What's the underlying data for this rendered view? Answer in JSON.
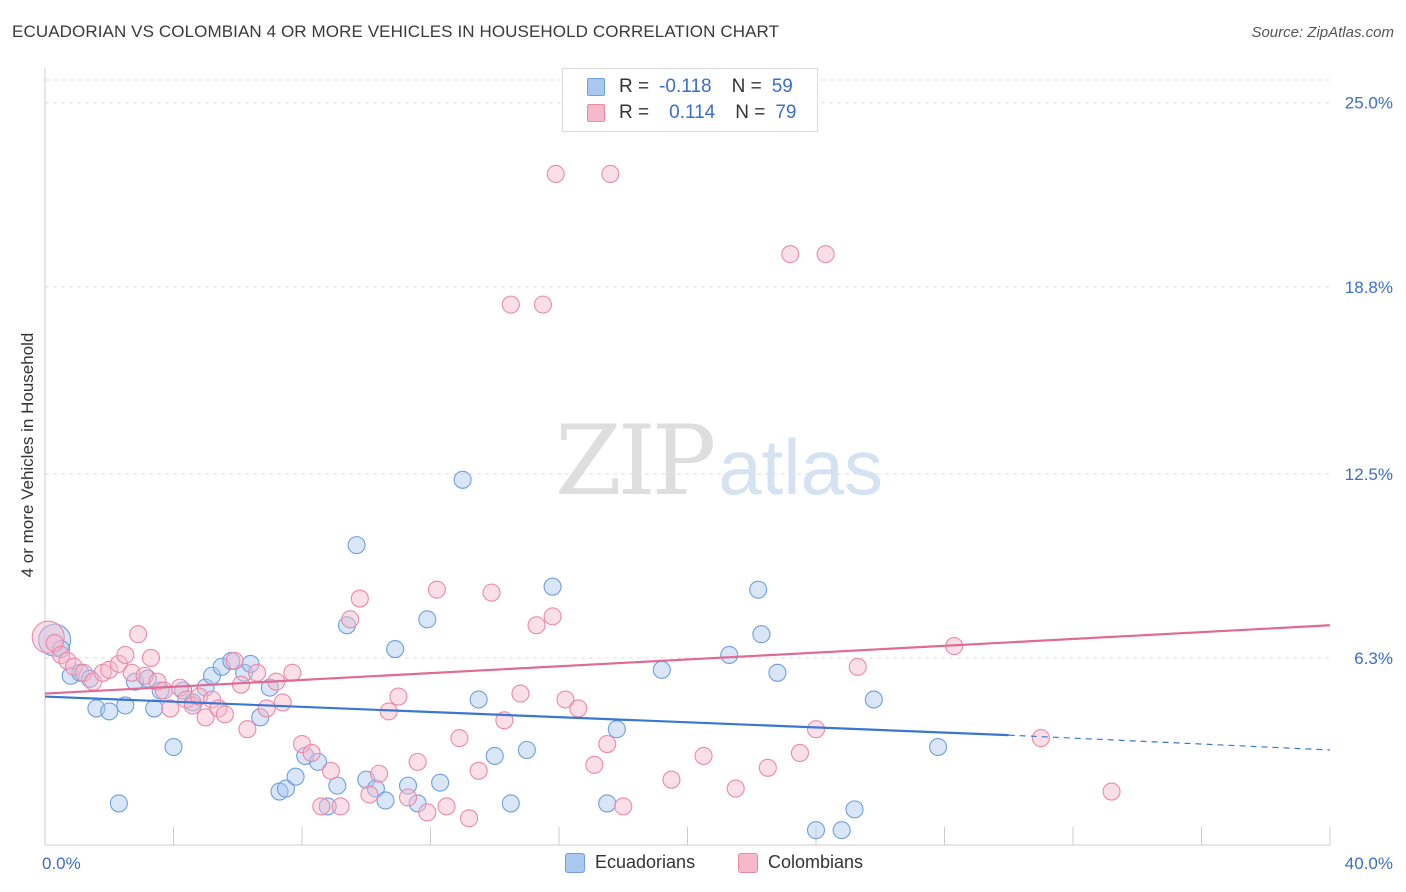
{
  "title": "ECUADORIAN VS COLOMBIAN 4 OR MORE VEHICLES IN HOUSEHOLD CORRELATION CHART",
  "source": "Source: ZipAtlas.com",
  "watermark": {
    "part1": "ZIP",
    "part2": "atlas"
  },
  "legend_top": [
    {
      "r_label": "R =",
      "r_value": "-0.118",
      "n_label": "N =",
      "n_value": "59",
      "color": "#a9c8f0"
    },
    {
      "r_label": "R =",
      "r_value": "0.114",
      "n_label": "N =",
      "n_value": "79",
      "color": "#f6b8cb"
    }
  ],
  "legend_bottom": [
    {
      "label": "Ecuadorians",
      "color": "#a9c8f0"
    },
    {
      "label": "Colombians",
      "color": "#f6b8cb"
    }
  ],
  "chart_data": {
    "type": "scatter",
    "ylabel": "4 or more Vehicles in Household",
    "xlim": [
      0,
      40
    ],
    "ylim": [
      0,
      25.9
    ],
    "x_tick_labels": [
      {
        "value": 0,
        "label": "0.0%"
      },
      {
        "value": 40,
        "label": "40.0%"
      }
    ],
    "y_tick_labels": [
      {
        "value": 6.3,
        "label": "6.3%"
      },
      {
        "value": 12.5,
        "label": "12.5%"
      },
      {
        "value": 18.8,
        "label": "18.8%"
      },
      {
        "value": 25.0,
        "label": "25.0%"
      }
    ],
    "x_minor_ticks": [
      4,
      8,
      12,
      16,
      20,
      24,
      28,
      32,
      36,
      40
    ],
    "grid": true,
    "series": [
      {
        "name": "Ecuadorians",
        "color": "#a9c8f0",
        "stroke": "#6f9fdc",
        "trend": {
          "x": [
            0,
            30
          ],
          "y": [
            5.0,
            3.7
          ],
          "color": "#3a78d0",
          "dashed_to": [
            40,
            3.2
          ]
        },
        "points": [
          [
            0.3,
            6.9
          ],
          [
            0.5,
            6.6
          ],
          [
            0.8,
            5.7
          ],
          [
            1.1,
            5.8
          ],
          [
            1.4,
            5.6
          ],
          [
            1.6,
            4.6
          ],
          [
            2.0,
            4.5
          ],
          [
            2.3,
            1.4
          ],
          [
            2.5,
            4.7
          ],
          [
            2.8,
            5.5
          ],
          [
            3.2,
            5.6
          ],
          [
            3.4,
            4.6
          ],
          [
            3.6,
            5.2
          ],
          [
            4.0,
            3.3
          ],
          [
            4.3,
            5.2
          ],
          [
            4.6,
            4.8
          ],
          [
            5.0,
            5.3
          ],
          [
            5.2,
            5.7
          ],
          [
            5.5,
            6.0
          ],
          [
            5.8,
            6.2
          ],
          [
            6.2,
            5.8
          ],
          [
            6.4,
            6.1
          ],
          [
            6.7,
            4.3
          ],
          [
            7.0,
            5.3
          ],
          [
            7.3,
            1.8
          ],
          [
            7.5,
            1.9
          ],
          [
            7.8,
            2.3
          ],
          [
            8.1,
            3.0
          ],
          [
            8.5,
            2.8
          ],
          [
            8.8,
            1.3
          ],
          [
            9.1,
            2.0
          ],
          [
            9.4,
            7.4
          ],
          [
            9.7,
            10.1
          ],
          [
            10.0,
            2.2
          ],
          [
            10.3,
            1.9
          ],
          [
            10.6,
            1.5
          ],
          [
            10.9,
            6.6
          ],
          [
            11.3,
            2.0
          ],
          [
            11.6,
            1.4
          ],
          [
            11.9,
            7.6
          ],
          [
            12.3,
            2.1
          ],
          [
            13.0,
            12.3
          ],
          [
            13.5,
            4.9
          ],
          [
            14.0,
            3.0
          ],
          [
            14.5,
            1.4
          ],
          [
            15.0,
            3.2
          ],
          [
            15.8,
            8.7
          ],
          [
            17.5,
            1.4
          ],
          [
            17.8,
            3.9
          ],
          [
            19.2,
            5.9
          ],
          [
            21.3,
            6.4
          ],
          [
            22.3,
            7.1
          ],
          [
            22.8,
            5.8
          ],
          [
            22.2,
            8.6
          ],
          [
            24.0,
            0.5
          ],
          [
            24.8,
            0.5
          ],
          [
            25.2,
            1.2
          ],
          [
            25.8,
            4.9
          ],
          [
            27.8,
            3.3
          ]
        ]
      },
      {
        "name": "Colombians",
        "color": "#f6b8cb",
        "stroke": "#ea8aa8",
        "trend": {
          "x": [
            0,
            40
          ],
          "y": [
            5.1,
            7.4
          ],
          "color": "#e06a94"
        },
        "points": [
          [
            0.1,
            7.0
          ],
          [
            0.3,
            6.8
          ],
          [
            0.5,
            6.4
          ],
          [
            0.7,
            6.2
          ],
          [
            0.9,
            6.0
          ],
          [
            1.2,
            5.8
          ],
          [
            1.5,
            5.5
          ],
          [
            1.8,
            5.8
          ],
          [
            2.0,
            5.9
          ],
          [
            2.3,
            6.1
          ],
          [
            2.5,
            6.4
          ],
          [
            2.7,
            5.8
          ],
          [
            2.9,
            7.1
          ],
          [
            3.1,
            5.7
          ],
          [
            3.3,
            6.3
          ],
          [
            3.5,
            5.5
          ],
          [
            3.7,
            5.2
          ],
          [
            3.9,
            4.6
          ],
          [
            4.2,
            5.3
          ],
          [
            4.4,
            4.9
          ],
          [
            4.6,
            4.7
          ],
          [
            4.8,
            5.0
          ],
          [
            5.0,
            4.3
          ],
          [
            5.2,
            4.9
          ],
          [
            5.4,
            4.6
          ],
          [
            5.6,
            4.4
          ],
          [
            5.9,
            6.2
          ],
          [
            6.1,
            5.4
          ],
          [
            6.3,
            3.9
          ],
          [
            6.6,
            5.8
          ],
          [
            6.9,
            4.6
          ],
          [
            7.2,
            5.5
          ],
          [
            7.4,
            4.8
          ],
          [
            7.7,
            5.8
          ],
          [
            8.0,
            3.4
          ],
          [
            8.3,
            3.1
          ],
          [
            8.6,
            1.3
          ],
          [
            8.9,
            2.5
          ],
          [
            9.2,
            1.3
          ],
          [
            9.5,
            7.6
          ],
          [
            9.8,
            8.3
          ],
          [
            10.1,
            1.7
          ],
          [
            10.4,
            2.4
          ],
          [
            10.7,
            4.5
          ],
          [
            11.0,
            5.0
          ],
          [
            11.3,
            1.6
          ],
          [
            11.6,
            2.8
          ],
          [
            11.9,
            1.1
          ],
          [
            12.2,
            8.6
          ],
          [
            12.5,
            1.3
          ],
          [
            12.9,
            3.6
          ],
          [
            13.2,
            0.9
          ],
          [
            13.5,
            2.5
          ],
          [
            13.9,
            8.5
          ],
          [
            14.3,
            4.2
          ],
          [
            14.8,
            5.1
          ],
          [
            15.3,
            7.4
          ],
          [
            15.8,
            7.7
          ],
          [
            16.2,
            4.9
          ],
          [
            16.6,
            4.6
          ],
          [
            17.1,
            2.7
          ],
          [
            17.5,
            3.4
          ],
          [
            14.5,
            18.2
          ],
          [
            15.5,
            18.2
          ],
          [
            15.9,
            22.6
          ],
          [
            17.6,
            22.6
          ],
          [
            23.2,
            19.9
          ],
          [
            24.3,
            19.9
          ],
          [
            24.0,
            3.9
          ],
          [
            25.3,
            6.0
          ],
          [
            28.3,
            6.7
          ],
          [
            31.0,
            3.6
          ],
          [
            33.2,
            1.8
          ],
          [
            18.0,
            1.3
          ],
          [
            19.5,
            2.2
          ],
          [
            20.5,
            3.0
          ],
          [
            21.5,
            1.9
          ],
          [
            22.5,
            2.6
          ],
          [
            23.5,
            3.1
          ]
        ]
      }
    ]
  }
}
